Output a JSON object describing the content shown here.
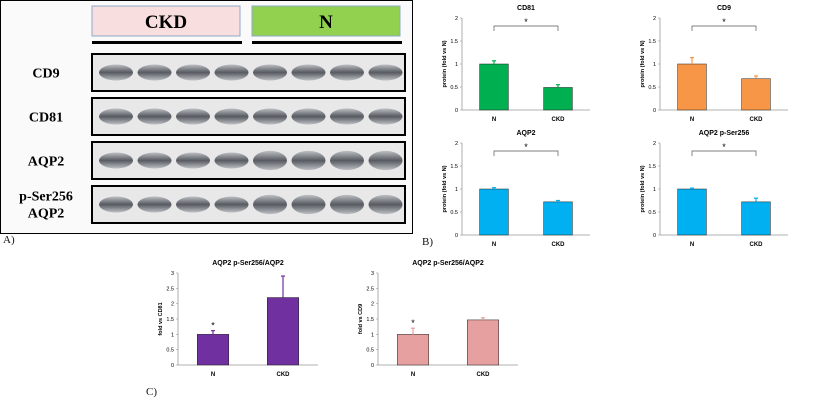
{
  "panel_labels": {
    "a": "A)",
    "b": "B)",
    "c": "C)"
  },
  "colors": {
    "green": "#00b050",
    "orange": "#f79646",
    "blue": "#00b0f0",
    "purple": "#7030a0",
    "pink": "#e6a0a0",
    "ckd_box": "#f8dede",
    "n_box": "#92d050"
  },
  "blot": {
    "groups": [
      {
        "label": "CKD",
        "color_key": "ckd_box"
      },
      {
        "label": "N",
        "color_key": "n_box"
      }
    ],
    "rows": [
      {
        "label_lines": [
          "CD9"
        ]
      },
      {
        "label_lines": [
          "CD81"
        ]
      },
      {
        "label_lines": [
          "AQP2"
        ]
      },
      {
        "label_lines": [
          "p-Ser256",
          "AQP2"
        ]
      }
    ]
  },
  "chart_data": [
    {
      "id": "cd81",
      "type": "bar",
      "title": "CD81",
      "ylabel": "protein (fold vs N)",
      "categories": [
        "N",
        "CKD"
      ],
      "values": [
        1.0,
        0.49
      ],
      "errors": [
        0.07,
        0.06
      ],
      "ylim": [
        0,
        2
      ],
      "yticks": [
        0,
        0.5,
        1,
        1.5,
        2
      ],
      "bar_color": "#00b050",
      "significance": "*"
    },
    {
      "id": "cd9",
      "type": "bar",
      "title": "CD9",
      "ylabel": "protein (fold vs N)",
      "categories": [
        "N",
        "CKD"
      ],
      "values": [
        1.0,
        0.68
      ],
      "errors": [
        0.14,
        0.06
      ],
      "ylim": [
        0,
        2
      ],
      "yticks": [
        0,
        0.5,
        1,
        1.5,
        2
      ],
      "bar_color": "#f79646",
      "significance": "*"
    },
    {
      "id": "aqp2",
      "type": "bar",
      "title": "AQP2",
      "ylabel": "protein (fold vs N)",
      "categories": [
        "N",
        "CKD"
      ],
      "values": [
        1.0,
        0.72
      ],
      "errors": [
        0.03,
        0.03
      ],
      "ylim": [
        0,
        2
      ],
      "yticks": [
        0,
        0.5,
        1,
        1.5,
        2
      ],
      "bar_color": "#00b0f0",
      "significance": "*"
    },
    {
      "id": "aqp2ps",
      "type": "bar",
      "title": "AQP2 p-Ser256",
      "ylabel": "protein (fold vs N)",
      "categories": [
        "N",
        "CKD"
      ],
      "values": [
        1.0,
        0.72
      ],
      "errors": [
        0.02,
        0.08
      ],
      "ylim": [
        0,
        2
      ],
      "yticks": [
        0,
        0.5,
        1,
        1.5,
        2
      ],
      "bar_color": "#00b0f0",
      "significance": "*"
    },
    {
      "id": "ratio_cd81",
      "type": "bar",
      "title": "AQP2 p-Ser256/AQP2",
      "ylabel": "fold vs CD81",
      "categories": [
        "N",
        "CKD"
      ],
      "values": [
        1.0,
        2.2
      ],
      "errors": [
        0.12,
        0.7
      ],
      "ylim": [
        0,
        3
      ],
      "yticks": [
        0,
        0.5,
        1,
        1.5,
        2,
        2.5,
        3
      ],
      "bar_color": "#7030a0",
      "star_on": "N"
    },
    {
      "id": "ratio_cd9",
      "type": "bar",
      "title": "AQP2 p-Ser256/AQP2",
      "ylabel": "fold vs CD9",
      "categories": [
        "N",
        "CKD"
      ],
      "values": [
        1.0,
        1.47
      ],
      "errors": [
        0.2,
        0.07
      ],
      "ylim": [
        0,
        3
      ],
      "yticks": [
        0,
        0.5,
        1,
        1.5,
        2,
        2.5,
        3
      ],
      "bar_color": "#e6a0a0",
      "star_on": "N"
    }
  ]
}
